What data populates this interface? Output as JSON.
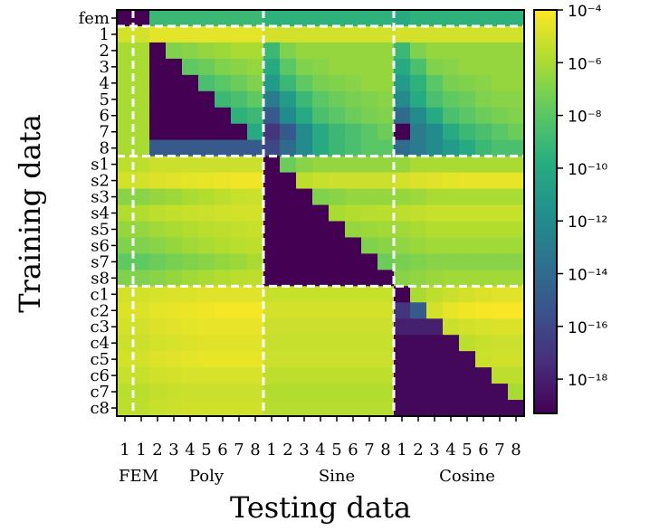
{
  "chart_data": {
    "type": "heatmap",
    "title": "",
    "xlabel": "Testing data",
    "ylabel": "Training data",
    "y_labels": [
      "fem",
      "1",
      "2",
      "3",
      "4",
      "5",
      "6",
      "7",
      "8",
      "s1",
      "s2",
      "s3",
      "s4",
      "s5",
      "s6",
      "s7",
      "s8",
      "c1",
      "c2",
      "c3",
      "c4",
      "c5",
      "c6",
      "c7",
      "c8"
    ],
    "x_labels": [
      "1",
      "1",
      "2",
      "3",
      "4",
      "5",
      "6",
      "7",
      "8",
      "1",
      "2",
      "3",
      "4",
      "5",
      "6",
      "7",
      "8",
      "1",
      "2",
      "3",
      "4",
      "5",
      "6",
      "7",
      "8"
    ],
    "x_groups": [
      "FEM",
      "Poly",
      "Sine",
      "Cosine"
    ],
    "colorbar": {
      "scale": "log10",
      "range": [
        -19.3,
        -4
      ],
      "colormap": "viridis",
      "tick_labels": [
        "10⁻⁴",
        "10⁻⁶",
        "10⁻⁸",
        "10⁻¹⁰",
        "10⁻¹²",
        "10⁻¹⁴",
        "10⁻¹⁶",
        "10⁻¹⁸"
      ]
    },
    "separator_color": "#ffffff",
    "values_log10": [
      [
        -19.3,
        -19.3,
        -9,
        -9,
        -9,
        -9,
        -9,
        -9,
        -9,
        -9.5,
        -9.5,
        -9.5,
        -9.5,
        -9.5,
        -9.5,
        -9.5,
        -9.5,
        -10,
        -9.5,
        -9.5,
        -9.5,
        -9.5,
        -9.5,
        -9.5,
        -9.5
      ],
      [
        -5,
        -5,
        -4.6,
        -4.6,
        -4.6,
        -4.6,
        -4.6,
        -4.6,
        -4.6,
        -5,
        -5,
        -5,
        -5,
        -5,
        -5,
        -5,
        -5,
        -5,
        -5,
        -5,
        -5,
        -5,
        -5,
        -5,
        -5
      ],
      [
        -6,
        -6,
        -19.3,
        -7,
        -6.8,
        -6.5,
        -6.3,
        -6,
        -6,
        -9,
        -7,
        -6.5,
        -6.5,
        -6.5,
        -6.5,
        -6.5,
        -6.5,
        -9,
        -7,
        -6.5,
        -6.5,
        -6.5,
        -6.5,
        -6.5,
        -6.5
      ],
      [
        -6,
        -6,
        -19.3,
        -19.3,
        -7.8,
        -7.5,
        -7,
        -6.8,
        -6.5,
        -10,
        -8,
        -7,
        -6.8,
        -6.5,
        -6.5,
        -6.5,
        -6.5,
        -10,
        -8.5,
        -7,
        -6.8,
        -6.5,
        -6.5,
        -6.5,
        -6.5
      ],
      [
        -6,
        -6,
        -19.3,
        -19.3,
        -19.3,
        -8.5,
        -8,
        -7.5,
        -7,
        -11,
        -9,
        -7.8,
        -7.2,
        -7,
        -6.8,
        -6.5,
        -6.5,
        -11,
        -9.5,
        -8,
        -7.2,
        -7,
        -6.8,
        -6.5,
        -6.5
      ],
      [
        -6,
        -6,
        -19.3,
        -19.3,
        -19.3,
        -19.3,
        -9,
        -8.5,
        -7.8,
        -13,
        -11,
        -9,
        -8,
        -7.5,
        -7.2,
        -7,
        -6.8,
        -12,
        -10,
        -8.5,
        -7.8,
        -7.5,
        -7,
        -6.8,
        -6.8
      ],
      [
        -6,
        -6,
        -19.3,
        -19.3,
        -19.3,
        -19.3,
        -19.3,
        -9.5,
        -9,
        -15,
        -12,
        -10,
        -8.5,
        -8,
        -7.5,
        -7.2,
        -7,
        -14,
        -12,
        -10,
        -8.5,
        -8,
        -7.5,
        -7.2,
        -7
      ],
      [
        -6,
        -6,
        -19.3,
        -19.3,
        -19.3,
        -19.3,
        -19.3,
        -19.3,
        -10,
        -17,
        -15,
        -12,
        -10,
        -9,
        -8.5,
        -8,
        -7.5,
        -19.3,
        -13,
        -12,
        -10,
        -9,
        -8.5,
        -8,
        -7.5
      ],
      [
        -6,
        -6,
        -15,
        -15,
        -15,
        -15,
        -15,
        -15,
        -15,
        -16,
        -14,
        -12,
        -10,
        -9,
        -8.5,
        -8,
        -8,
        -14,
        -13,
        -12,
        -11,
        -10,
        -9,
        -8.5,
        -8.5
      ],
      [
        -5.5,
        -5.5,
        -5.2,
        -5.2,
        -5.2,
        -5.2,
        -5.2,
        -5.2,
        -5.2,
        -19.3,
        -7.5,
        -6.8,
        -6.5,
        -6.5,
        -6.5,
        -6.5,
        -6.5,
        -6.5,
        -6,
        -6,
        -6,
        -6,
        -6,
        -6,
        -6
      ],
      [
        -5,
        -5,
        -4.8,
        -4.7,
        -4.6,
        -4.5,
        -4.4,
        -4.3,
        -4.3,
        -19.3,
        -19.3,
        -5.5,
        -5.3,
        -5.2,
        -5.2,
        -5.2,
        -5.2,
        -5,
        -4.8,
        -4.7,
        -4.6,
        -4.5,
        -4.5,
        -4.5,
        -4.5
      ],
      [
        -6.8,
        -6.8,
        -6.5,
        -6.3,
        -6,
        -5.8,
        -5.5,
        -5.3,
        -5.2,
        -19.3,
        -19.3,
        -19.3,
        -7,
        -6.8,
        -6.5,
        -6.5,
        -6.5,
        -6.5,
        -6.3,
        -6,
        -6,
        -6,
        -6,
        -6,
        -6
      ],
      [
        -5.8,
        -5.8,
        -5.5,
        -5.4,
        -5.3,
        -5.2,
        -5.1,
        -5,
        -5,
        -19.3,
        -19.3,
        -19.3,
        -19.3,
        -6,
        -5.8,
        -5.7,
        -5.6,
        -5.5,
        -5.4,
        -5.3,
        -5.3,
        -5.3,
        -5.3,
        -5.3,
        -5.3
      ],
      [
        -6.5,
        -6.5,
        -6.2,
        -6,
        -5.8,
        -5.6,
        -5.5,
        -5.4,
        -5.3,
        -19.3,
        -19.3,
        -19.3,
        -19.3,
        -19.3,
        -6.5,
        -6.3,
        -6.2,
        -6.2,
        -6,
        -5.8,
        -5.8,
        -5.8,
        -5.8,
        -5.8,
        -5.8
      ],
      [
        -7,
        -7,
        -6.8,
        -6.5,
        -6.2,
        -6,
        -5.8,
        -5.6,
        -5.5,
        -19.3,
        -19.3,
        -19.3,
        -19.3,
        -19.3,
        -19.3,
        -7,
        -6.8,
        -6.6,
        -6.4,
        -6.2,
        -6.2,
        -6.2,
        -6.2,
        -6.2,
        -6.2
      ],
      [
        -7.8,
        -7.8,
        -7.5,
        -7.2,
        -7,
        -6.8,
        -6.5,
        -6.3,
        -6,
        -19.3,
        -19.3,
        -19.3,
        -19.3,
        -19.3,
        -19.3,
        -19.3,
        -7.5,
        -7.2,
        -7,
        -6.8,
        -6.8,
        -6.8,
        -6.8,
        -6.8,
        -6.8
      ],
      [
        -7,
        -7,
        -6.8,
        -6.5,
        -6.2,
        -6,
        -5.8,
        -5.6,
        -5.5,
        -19.3,
        -19.3,
        -19.3,
        -19.3,
        -19.3,
        -19.3,
        -19.3,
        -19.3,
        -6.8,
        -6.6,
        -6.4,
        -6.2,
        -6.2,
        -6.2,
        -6.2,
        -6.2
      ],
      [
        -5,
        -5,
        -4.9,
        -4.8,
        -4.8,
        -4.7,
        -4.7,
        -4.7,
        -4.7,
        -5.3,
        -5.3,
        -5.3,
        -5.3,
        -5.3,
        -5.3,
        -5.3,
        -5.3,
        -19.3,
        -6,
        -5.5,
        -5.2,
        -5,
        -4.8,
        -4.7,
        -4.7
      ],
      [
        -4.8,
        -4.8,
        -4.6,
        -4.5,
        -4.4,
        -4.3,
        -4.2,
        -4.2,
        -4.2,
        -5,
        -5,
        -5,
        -5,
        -5,
        -5,
        -5,
        -5,
        -17,
        -15,
        -5,
        -4.5,
        -4.3,
        -4.2,
        -4.1,
        -4.1
      ],
      [
        -5,
        -5,
        -4.8,
        -4.7,
        -4.6,
        -4.5,
        -4.5,
        -4.5,
        -4.5,
        -5.2,
        -5.2,
        -5.2,
        -5.2,
        -5.2,
        -5.2,
        -5.2,
        -5.2,
        -18,
        -18,
        -18,
        -5.2,
        -5,
        -4.9,
        -4.8,
        -4.8
      ],
      [
        -5.2,
        -5.2,
        -5,
        -4.9,
        -4.8,
        -4.7,
        -4.7,
        -4.7,
        -4.7,
        -5.3,
        -5.3,
        -5.3,
        -5.3,
        -5.3,
        -5.3,
        -5.3,
        -5.3,
        -19,
        -19,
        -19,
        -19,
        -5.5,
        -5.3,
        -5.2,
        -5.2
      ],
      [
        -5,
        -5,
        -4.8,
        -4.7,
        -4.6,
        -4.5,
        -4.5,
        -4.5,
        -4.5,
        -5.2,
        -5.2,
        -5.2,
        -5.2,
        -5.2,
        -5.2,
        -5.2,
        -5.2,
        -19,
        -19,
        -19,
        -19,
        -19,
        -5.2,
        -5.1,
        -5.1
      ],
      [
        -5.3,
        -5.3,
        -5.1,
        -5,
        -4.9,
        -4.9,
        -4.9,
        -4.9,
        -4.9,
        -5.5,
        -5.5,
        -5.5,
        -5.5,
        -5.5,
        -5.5,
        -5.5,
        -5.5,
        -19,
        -19,
        -19,
        -19,
        -19,
        -19,
        -5.5,
        -5.5
      ],
      [
        -5.6,
        -5.6,
        -5.4,
        -5.3,
        -5.2,
        -5.2,
        -5.2,
        -5.2,
        -5.2,
        -5.8,
        -5.8,
        -5.8,
        -5.8,
        -5.8,
        -5.8,
        -5.8,
        -5.8,
        -19,
        -19,
        -19,
        -19,
        -19,
        -19,
        -19,
        -6
      ],
      [
        -5.5,
        -5.5,
        -5.3,
        -5.2,
        -5.1,
        -5.1,
        -5.1,
        -5.1,
        -5.1,
        -5.7,
        -5.7,
        -5.7,
        -5.7,
        -5.7,
        -5.7,
        -5.7,
        -5.7,
        -19,
        -19,
        -19,
        -19,
        -19,
        -19,
        -19,
        -19
      ]
    ]
  }
}
